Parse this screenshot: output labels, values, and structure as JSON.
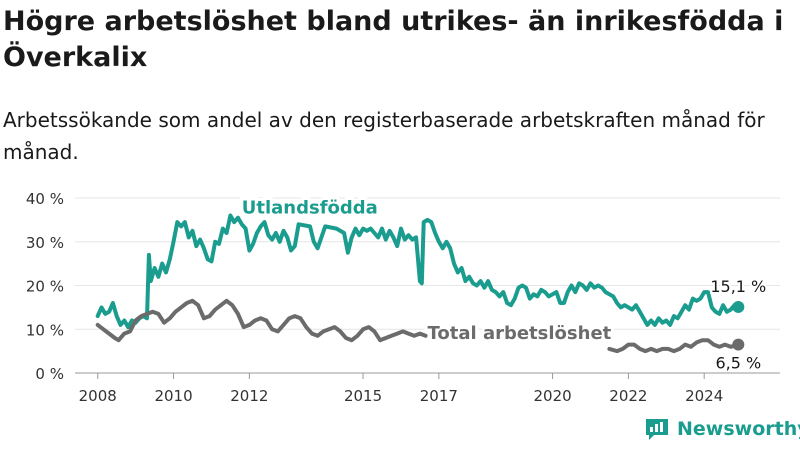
{
  "title": "Högre arbetslöshet bland utrikes- än inrikesfödda i Överkalix",
  "subtitle": "Arbetssökande som andel av den registerbaserade arbetskraften månad för månad.",
  "brand": {
    "name": "Newsworthy"
  },
  "colors": {
    "foreign": "#1a9c8f",
    "total": "#6b6b6b",
    "grid": "#e6e6e6",
    "text": "#333333"
  },
  "chart_data": {
    "type": "line",
    "ylim": [
      0,
      40
    ],
    "xlim": [
      2007.4,
      2026.0
    ],
    "y_ticks": [
      {
        "value": 0,
        "label": "0 %"
      },
      {
        "value": 10,
        "label": "10 %"
      },
      {
        "value": 20,
        "label": "20 %"
      },
      {
        "value": 30,
        "label": "30 %"
      },
      {
        "value": 40,
        "label": "40 %"
      }
    ],
    "x_ticks": [
      {
        "value": 2008,
        "label": "2008"
      },
      {
        "value": 2010,
        "label": "2010"
      },
      {
        "value": 2012,
        "label": "2012"
      },
      {
        "value": 2015,
        "label": "2015"
      },
      {
        "value": 2017,
        "label": "2017"
      },
      {
        "value": 2020,
        "label": "2020"
      },
      {
        "value": 2022,
        "label": "2022"
      },
      {
        "value": 2024,
        "label": "2024"
      }
    ],
    "grid": true,
    "series": [
      {
        "name": "Utlandsfödda",
        "end_label": "15,1 %",
        "points": [
          [
            2008.0,
            13.0
          ],
          [
            2008.1,
            15.0
          ],
          [
            2008.2,
            13.5
          ],
          [
            2008.3,
            14.0
          ],
          [
            2008.4,
            16.0
          ],
          [
            2008.5,
            13.0
          ],
          [
            2008.6,
            11.0
          ],
          [
            2008.7,
            12.0
          ],
          [
            2008.8,
            10.5
          ],
          [
            2008.9,
            12.0
          ],
          [
            2009.0,
            11.5
          ],
          [
            2009.1,
            12.5
          ],
          [
            2009.2,
            13.0
          ],
          [
            2009.3,
            12.5
          ],
          [
            2009.35,
            27.0
          ],
          [
            2009.4,
            21.0
          ],
          [
            2009.5,
            24.0
          ],
          [
            2009.6,
            22.0
          ],
          [
            2009.7,
            25.0
          ],
          [
            2009.8,
            23.0
          ],
          [
            2009.9,
            26.0
          ],
          [
            2010.0,
            30.0
          ],
          [
            2010.1,
            34.5
          ],
          [
            2010.2,
            33.5
          ],
          [
            2010.3,
            34.5
          ],
          [
            2010.4,
            31.0
          ],
          [
            2010.5,
            32.5
          ],
          [
            2010.6,
            29.0
          ],
          [
            2010.7,
            30.5
          ],
          [
            2010.8,
            28.5
          ],
          [
            2010.9,
            26.0
          ],
          [
            2011.0,
            25.5
          ],
          [
            2011.1,
            30.0
          ],
          [
            2011.2,
            29.5
          ],
          [
            2011.3,
            33.0
          ],
          [
            2011.4,
            32.0
          ],
          [
            2011.5,
            36.0
          ],
          [
            2011.6,
            34.5
          ],
          [
            2011.7,
            35.5
          ],
          [
            2011.8,
            34.0
          ],
          [
            2011.9,
            33.0
          ],
          [
            2012.0,
            28.0
          ],
          [
            2012.1,
            29.5
          ],
          [
            2012.2,
            32.0
          ],
          [
            2012.3,
            33.5
          ],
          [
            2012.4,
            34.5
          ],
          [
            2012.5,
            31.5
          ],
          [
            2012.6,
            30.5
          ],
          [
            2012.7,
            32.0
          ],
          [
            2012.8,
            30.0
          ],
          [
            2012.9,
            32.5
          ],
          [
            2013.0,
            31.0
          ],
          [
            2013.1,
            28.0
          ],
          [
            2013.2,
            29.0
          ],
          [
            2013.3,
            34.0
          ],
          [
            2013.6,
            33.5
          ],
          [
            2013.7,
            30.0
          ],
          [
            2013.8,
            28.5
          ],
          [
            2013.9,
            31.0
          ],
          [
            2014.0,
            33.5
          ],
          [
            2014.3,
            33.0
          ],
          [
            2014.5,
            32.0
          ],
          [
            2014.6,
            27.5
          ],
          [
            2014.7,
            31.0
          ],
          [
            2014.8,
            33.0
          ],
          [
            2014.9,
            31.5
          ],
          [
            2015.0,
            33.0
          ],
          [
            2015.1,
            32.5
          ],
          [
            2015.2,
            33.0
          ],
          [
            2015.3,
            32.0
          ],
          [
            2015.4,
            31.0
          ],
          [
            2015.5,
            33.0
          ],
          [
            2015.6,
            30.5
          ],
          [
            2015.7,
            32.5
          ],
          [
            2015.8,
            31.0
          ],
          [
            2015.9,
            29.0
          ],
          [
            2016.0,
            33.0
          ],
          [
            2016.1,
            30.5
          ],
          [
            2016.2,
            31.5
          ],
          [
            2016.3,
            30.5
          ],
          [
            2016.4,
            31.0
          ],
          [
            2016.5,
            21.0
          ],
          [
            2016.55,
            20.5
          ],
          [
            2016.6,
            34.5
          ],
          [
            2016.7,
            35.0
          ],
          [
            2016.8,
            34.5
          ],
          [
            2016.9,
            32.0
          ],
          [
            2017.0,
            30.0
          ],
          [
            2017.1,
            28.5
          ],
          [
            2017.2,
            30.0
          ],
          [
            2017.3,
            28.5
          ],
          [
            2017.4,
            25.0
          ],
          [
            2017.5,
            23.0
          ],
          [
            2017.6,
            24.0
          ],
          [
            2017.7,
            21.0
          ],
          [
            2017.8,
            22.0
          ],
          [
            2017.9,
            20.5
          ],
          [
            2018.0,
            20.0
          ],
          [
            2018.1,
            21.0
          ],
          [
            2018.2,
            19.5
          ],
          [
            2018.3,
            21.0
          ],
          [
            2018.4,
            19.0
          ],
          [
            2018.5,
            18.5
          ],
          [
            2018.6,
            17.5
          ],
          [
            2018.7,
            18.5
          ],
          [
            2018.8,
            16.0
          ],
          [
            2018.9,
            15.5
          ],
          [
            2019.0,
            17.0
          ],
          [
            2019.1,
            19.5
          ],
          [
            2019.2,
            20.0
          ],
          [
            2019.3,
            19.5
          ],
          [
            2019.4,
            17.0
          ],
          [
            2019.5,
            18.0
          ],
          [
            2019.6,
            17.5
          ],
          [
            2019.7,
            19.0
          ],
          [
            2019.8,
            18.5
          ],
          [
            2019.9,
            17.5
          ],
          [
            2020.0,
            18.0
          ],
          [
            2020.1,
            18.5
          ],
          [
            2020.2,
            16.0
          ],
          [
            2020.3,
            16.0
          ],
          [
            2020.4,
            18.5
          ],
          [
            2020.5,
            20.0
          ],
          [
            2020.6,
            18.5
          ],
          [
            2020.7,
            20.5
          ],
          [
            2020.8,
            20.0
          ],
          [
            2020.9,
            19.0
          ],
          [
            2021.0,
            20.5
          ],
          [
            2021.1,
            19.5
          ],
          [
            2021.2,
            20.0
          ],
          [
            2021.3,
            19.5
          ],
          [
            2021.4,
            18.5
          ],
          [
            2021.5,
            18.0
          ],
          [
            2021.6,
            17.5
          ],
          [
            2021.7,
            16.0
          ],
          [
            2021.8,
            15.0
          ],
          [
            2021.9,
            15.5
          ],
          [
            2022.0,
            15.0
          ],
          [
            2022.1,
            14.5
          ],
          [
            2022.2,
            15.5
          ],
          [
            2022.3,
            14.0
          ],
          [
            2022.4,
            12.5
          ],
          [
            2022.5,
            11.0
          ],
          [
            2022.6,
            12.0
          ],
          [
            2022.7,
            11.0
          ],
          [
            2022.8,
            12.5
          ],
          [
            2022.9,
            11.5
          ],
          [
            2023.0,
            12.0
          ],
          [
            2023.1,
            11.0
          ],
          [
            2023.2,
            13.0
          ],
          [
            2023.3,
            12.5
          ],
          [
            2023.4,
            14.0
          ],
          [
            2023.5,
            15.5
          ],
          [
            2023.6,
            14.5
          ],
          [
            2023.7,
            17.0
          ],
          [
            2023.8,
            16.5
          ],
          [
            2023.9,
            17.0
          ],
          [
            2024.0,
            18.5
          ],
          [
            2024.1,
            18.5
          ],
          [
            2024.2,
            15.0
          ],
          [
            2024.3,
            14.0
          ],
          [
            2024.4,
            13.5
          ],
          [
            2024.5,
            15.5
          ],
          [
            2024.6,
            14.0
          ],
          [
            2024.7,
            14.5
          ],
          [
            2024.8,
            15.5
          ],
          [
            2024.9,
            15.1
          ]
        ]
      },
      {
        "name": "Total arbetslöshet",
        "end_label": "6,5 %",
        "points": [
          [
            2008.0,
            11.0
          ],
          [
            2008.15,
            10.0
          ],
          [
            2008.3,
            9.0
          ],
          [
            2008.45,
            8.0
          ],
          [
            2008.55,
            7.5
          ],
          [
            2008.7,
            9.0
          ],
          [
            2008.85,
            9.5
          ],
          [
            2009.0,
            12.0
          ],
          [
            2009.15,
            13.0
          ],
          [
            2009.3,
            13.5
          ],
          [
            2009.45,
            14.0
          ],
          [
            2009.6,
            13.5
          ],
          [
            2009.75,
            11.5
          ],
          [
            2009.9,
            12.5
          ],
          [
            2010.05,
            14.0
          ],
          [
            2010.2,
            15.0
          ],
          [
            2010.35,
            16.0
          ],
          [
            2010.5,
            16.5
          ],
          [
            2010.65,
            15.5
          ],
          [
            2010.8,
            12.5
          ],
          [
            2010.95,
            13.0
          ],
          [
            2011.1,
            14.5
          ],
          [
            2011.25,
            15.5
          ],
          [
            2011.4,
            16.5
          ],
          [
            2011.55,
            15.5
          ],
          [
            2011.7,
            13.5
          ],
          [
            2011.85,
            10.5
          ],
          [
            2012.0,
            11.0
          ],
          [
            2012.15,
            12.0
          ],
          [
            2012.3,
            12.5
          ],
          [
            2012.45,
            12.0
          ],
          [
            2012.6,
            10.0
          ],
          [
            2012.75,
            9.5
          ],
          [
            2012.9,
            11.0
          ],
          [
            2013.05,
            12.5
          ],
          [
            2013.2,
            13.0
          ],
          [
            2013.35,
            12.5
          ],
          [
            2013.5,
            10.5
          ],
          [
            2013.65,
            9.0
          ],
          [
            2013.8,
            8.5
          ],
          [
            2013.95,
            9.5
          ],
          [
            2014.1,
            10.0
          ],
          [
            2014.25,
            10.5
          ],
          [
            2014.4,
            9.5
          ],
          [
            2014.55,
            8.0
          ],
          [
            2014.7,
            7.5
          ],
          [
            2014.85,
            8.5
          ],
          [
            2015.0,
            10.0
          ],
          [
            2015.15,
            10.5
          ],
          [
            2015.3,
            9.5
          ],
          [
            2015.45,
            7.5
          ],
          [
            2015.6,
            8.0
          ],
          [
            2015.75,
            8.5
          ],
          [
            2015.9,
            9.0
          ],
          [
            2016.05,
            9.5
          ],
          [
            2016.2,
            9.0
          ],
          [
            2016.35,
            8.5
          ],
          [
            2016.5,
            9.0
          ],
          [
            2016.65,
            8.5
          ]
        ],
        "points_right": [
          [
            2021.5,
            5.5
          ],
          [
            2021.7,
            5.0
          ],
          [
            2021.85,
            5.5
          ],
          [
            2022.0,
            6.5
          ],
          [
            2022.15,
            6.5
          ],
          [
            2022.3,
            5.5
          ],
          [
            2022.45,
            5.0
          ],
          [
            2022.6,
            5.5
          ],
          [
            2022.75,
            5.0
          ],
          [
            2022.9,
            5.5
          ],
          [
            2023.05,
            5.5
          ],
          [
            2023.2,
            5.0
          ],
          [
            2023.35,
            5.5
          ],
          [
            2023.5,
            6.5
          ],
          [
            2023.65,
            6.0
          ],
          [
            2023.8,
            7.0
          ],
          [
            2023.95,
            7.5
          ],
          [
            2024.1,
            7.5
          ],
          [
            2024.25,
            6.5
          ],
          [
            2024.4,
            6.0
          ],
          [
            2024.55,
            6.5
          ],
          [
            2024.7,
            6.0
          ],
          [
            2024.9,
            6.5
          ]
        ]
      }
    ],
    "annotations": [
      {
        "text": "Utlandsfödda",
        "series": 0,
        "x": 2011.8,
        "y": 36.5
      },
      {
        "text": "Total arbetslöshet",
        "series": 1,
        "x": 2016.7,
        "y": 7.8
      }
    ]
  }
}
